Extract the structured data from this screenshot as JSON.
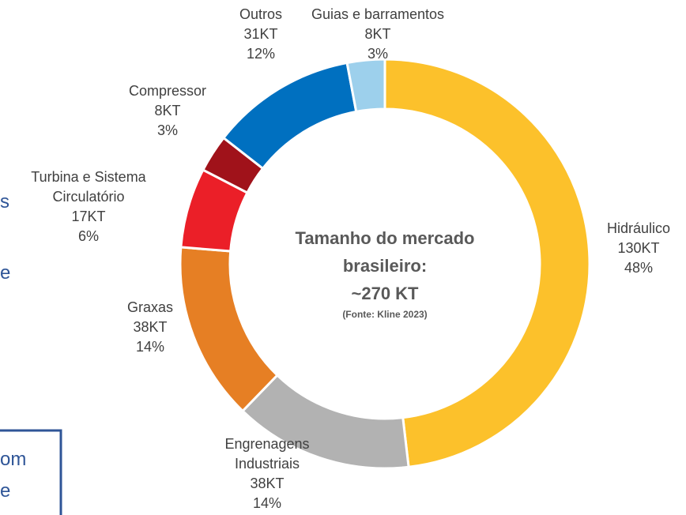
{
  "chart_data": {
    "type": "donut",
    "title": "Tamanho do mercado brasileiro:",
    "subtitle": "~270 KT",
    "source": "(Fonte: Kline 2023)",
    "categories": [
      "Hidráulico",
      "Engrenagens Industriais",
      "Graxas",
      "Turbina e Sistema Circulatório",
      "Compressor",
      "Outros",
      "Guias e barramentos"
    ],
    "values": [
      130,
      38,
      38,
      17,
      8,
      31,
      8
    ],
    "value_labels": [
      "130KT",
      "38KT",
      "38KT",
      "17KT",
      "8KT",
      "31KT",
      "8KT"
    ],
    "shares": [
      48,
      14,
      14,
      6,
      3,
      12,
      3
    ],
    "share_labels": [
      "48%",
      "14%",
      "14%",
      "6%",
      "3%",
      "12%",
      "3%"
    ],
    "colors": [
      "#FCC12B",
      "#B2B2B2",
      "#E67F24",
      "#EB1F28",
      "#A0121A",
      "#0070C0",
      "#9DD0EC"
    ]
  },
  "side_text": {
    "fragments": [
      "s",
      "e"
    ],
    "box": [
      "om",
      "e"
    ]
  }
}
